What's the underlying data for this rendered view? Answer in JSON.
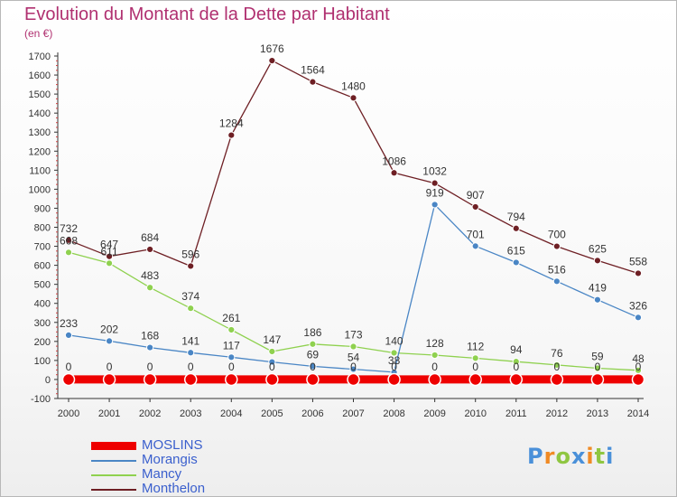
{
  "header": {
    "title": "Evolution du Montant de la Dette par Habitant",
    "subtitle": "(en €)"
  },
  "logo": {
    "letters": [
      "P",
      "r",
      "o",
      "x",
      "i",
      "t",
      "i"
    ]
  },
  "chart_data": {
    "type": "line",
    "title": "Evolution du Montant de la Dette par Habitant",
    "subtitle": "(en €)",
    "xlabel": "",
    "ylabel": "",
    "x": [
      "2000",
      "2001",
      "2002",
      "2003",
      "2004",
      "2005",
      "2006",
      "2007",
      "2008",
      "2009",
      "2010",
      "2011",
      "2012",
      "2013",
      "2014"
    ],
    "ylim": [
      -100,
      1700
    ],
    "yticks": [
      -100,
      0,
      100,
      200,
      300,
      400,
      500,
      600,
      700,
      800,
      900,
      1000,
      1100,
      1200,
      1300,
      1400,
      1500,
      1600,
      1700
    ],
    "grid": false,
    "legend": "bottom-left",
    "series": [
      {
        "name": "MOSLINS",
        "color": "#ee0000",
        "values": [
          0,
          0,
          0,
          0,
          0,
          0,
          0,
          0,
          0,
          0,
          0,
          0,
          0,
          0,
          0
        ],
        "labels": [
          "0",
          "0",
          "0",
          "0",
          "0",
          "0",
          "0",
          "0",
          "0",
          "0",
          "0",
          "0",
          "0",
          "0",
          "0"
        ]
      },
      {
        "name": "Morangis",
        "color": "#4a86c5",
        "values": [
          233,
          202,
          168,
          141,
          117,
          92,
          69,
          54,
          38,
          919,
          701,
          615,
          516,
          419,
          326
        ],
        "labels": [
          "233",
          "202",
          "168",
          "141",
          "117",
          "",
          "69",
          "54",
          "38",
          "919",
          "701",
          "615",
          "516",
          "419",
          "326"
        ]
      },
      {
        "name": "Mancy",
        "color": "#8fd14f",
        "values": [
          668,
          611,
          483,
          374,
          261,
          147,
          186,
          173,
          140,
          128,
          112,
          94,
          76,
          59,
          48
        ],
        "labels": [
          "668",
          "611",
          "483",
          "374",
          "261",
          "147",
          "186",
          "173",
          "140",
          "128",
          "112",
          "94",
          "76",
          "59",
          "48"
        ]
      },
      {
        "name": "Monthelon",
        "color": "#6e1f24",
        "values": [
          732,
          647,
          684,
          596,
          1284,
          1676,
          1564,
          1480,
          1086,
          1032,
          907,
          794,
          700,
          625,
          558
        ],
        "labels": [
          "732",
          "647",
          "684",
          "596",
          "1284",
          "1676",
          "1564",
          "1480",
          "1086",
          "1032",
          "907",
          "794",
          "700",
          "625",
          "558"
        ]
      }
    ]
  }
}
